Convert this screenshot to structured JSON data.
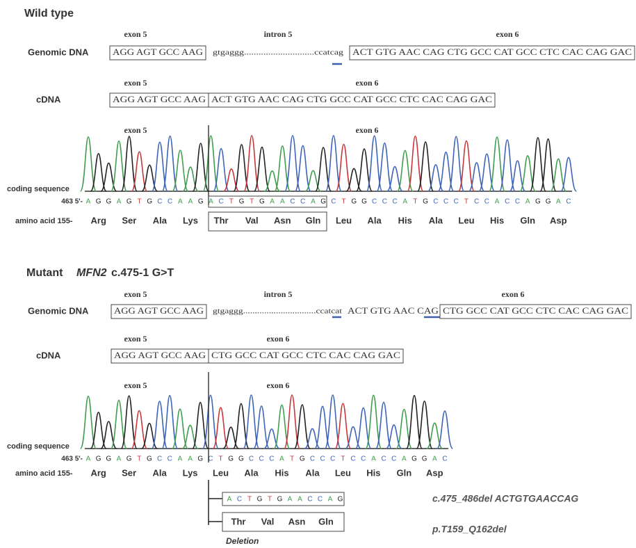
{
  "base_colors": {
    "A": "#3f9e4d",
    "C": "#3d64b8",
    "G": "#222222",
    "T": "#c8363a"
  },
  "wild_type": {
    "title": "Wild type",
    "genomic": {
      "label": "Genomic DNA",
      "exon5_label": "exon 5",
      "intron_label": "intron 5",
      "exon6_label": "exon 6",
      "exon5_seq": "AGG AGT GCC AAG",
      "intron_seq": "gtgaggg.............................ccatcag",
      "exon6_seq": "ACT GTG AAC CAG CTG GCC CAT GCC CTC CAC CAG GAC"
    },
    "cdna": {
      "label": "cDNA",
      "exon5_label": "exon 5",
      "exon6_label": "exon 6",
      "exon5_seq": "AGG AGT GCC AAG",
      "exon6_seq": "ACT GTG AAC CAG CTG GCC CAT GCC CTC CAC CAG GAC"
    },
    "trace": {
      "exon5_label": "exon 5",
      "exon6_label": "exon 6",
      "coding_label": "coding sequence",
      "start_label": "463 5'-",
      "bases": [
        "A",
        "G",
        "G",
        "A",
        "G",
        "T",
        "G",
        "C",
        "C",
        "A",
        "A",
        "G",
        "A",
        "C",
        "T",
        "G",
        "T",
        "G",
        "A",
        "A",
        "C",
        "C",
        "A",
        "G",
        "C",
        "T",
        "G",
        "G",
        "C",
        "C",
        "C",
        "A",
        "T",
        "G",
        "C",
        "C",
        "C",
        "T",
        "C",
        "C",
        "A",
        "C",
        "C",
        "A",
        "G",
        "G",
        "A",
        "C"
      ],
      "aa_label": "amino acid 155-",
      "amino_acids": [
        "Arg",
        "Ser",
        "Ala",
        "Lys",
        "Thr",
        "Val",
        "Asn",
        "Gln",
        "Leu",
        "Ala",
        "His",
        "Ala",
        "Leu",
        "His",
        "Gln",
        "Asp"
      ]
    }
  },
  "mutant": {
    "title": "Mutant",
    "gene": "MFN2",
    "variant": "c.475-1 G>T",
    "genomic": {
      "label": "Genomic DNA",
      "exon5_label": "exon 5",
      "intron_label": "intron 5",
      "exon6_label": "exon 6",
      "exon5_seq": "AGG AGT GCC AAG",
      "intron_seq": "gtgaggg...............................ccatcat",
      "skipped_seq": "ACT GTG AAC CAG",
      "exon6_seq": "CTG GCC CAT GCC CTC CAC CAG GAC"
    },
    "cdna": {
      "label": "cDNA",
      "exon5_label": "exon 5",
      "exon6_label": "exon 6",
      "exon5_seq": "AGG AGT GCC AAG",
      "exon6_seq": "CTG GCC CAT GCC CTC CAC CAG GAC"
    },
    "trace": {
      "exon5_label": "exon 5",
      "exon6_label": "exon 6",
      "coding_label": "coding sequence",
      "start_label": "463 5'-",
      "bases": [
        "A",
        "G",
        "G",
        "A",
        "G",
        "T",
        "G",
        "C",
        "C",
        "A",
        "A",
        "G",
        "C",
        "T",
        "G",
        "G",
        "C",
        "C",
        "C",
        "A",
        "T",
        "G",
        "C",
        "C",
        "C",
        "T",
        "C",
        "C",
        "A",
        "C",
        "C",
        "A",
        "G",
        "G",
        "A",
        "C"
      ],
      "aa_label": "amino acid 155-",
      "amino_acids": [
        "Arg",
        "Ser",
        "Ala",
        "Lys",
        "Leu",
        "Ala",
        "His",
        "Ala",
        "Leu",
        "His",
        "Gln",
        "Asp"
      ]
    },
    "deletion": {
      "bases": [
        "A",
        "C",
        "T",
        "G",
        "T",
        "G",
        "A",
        "A",
        "C",
        "C",
        "A",
        "G"
      ],
      "amino_acids": [
        "Thr",
        "Val",
        "Asn",
        "Gln"
      ],
      "label": "Deletion"
    },
    "notation": {
      "cdna": "c.475_486del ACTGTGAACCAG",
      "protein": "p.T159_Q162del"
    }
  }
}
